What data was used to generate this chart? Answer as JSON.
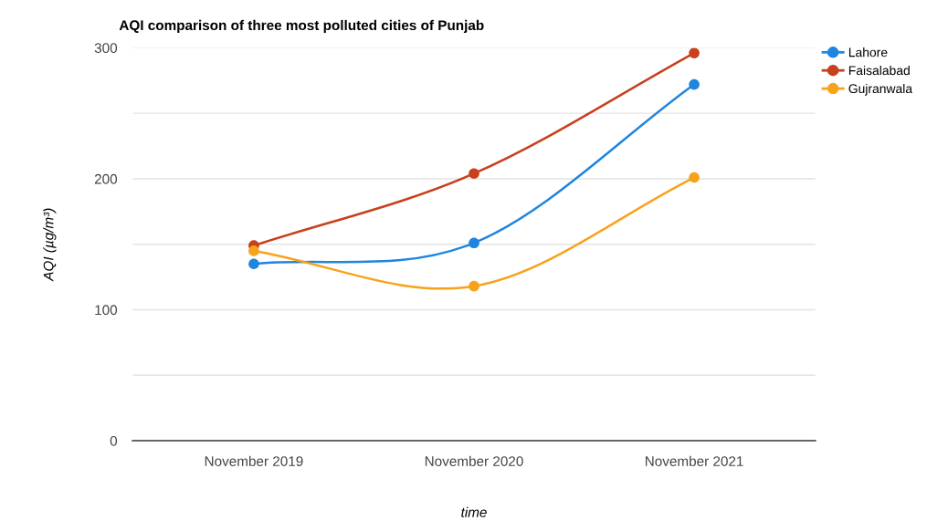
{
  "chart_data": {
    "type": "line",
    "title": "AQI comparison of three most polluted cities of Punjab",
    "xlabel": "time",
    "ylabel": "AQI (µg/m³)",
    "categories": [
      "November 2019",
      "November 2020",
      "November 2021"
    ],
    "series": [
      {
        "name": "Lahore",
        "color": "#1f85de",
        "values": [
          135,
          151,
          272
        ]
      },
      {
        "name": "Faisalabad",
        "color": "#c8401c",
        "values": [
          149,
          204,
          296
        ]
      },
      {
        "name": "Gujranwala",
        "color": "#f7a21b",
        "values": [
          145,
          118,
          201
        ]
      }
    ],
    "ylim": [
      0,
      300
    ],
    "yticks": [
      0,
      {
        "value": 50,
        "label": null
      },
      100,
      {
        "value": 150,
        "label": null
      },
      200,
      {
        "value": 250,
        "label": null
      },
      300
    ],
    "grid": "y",
    "legend": "top right",
    "marker": "circle",
    "line_style": "solid"
  }
}
